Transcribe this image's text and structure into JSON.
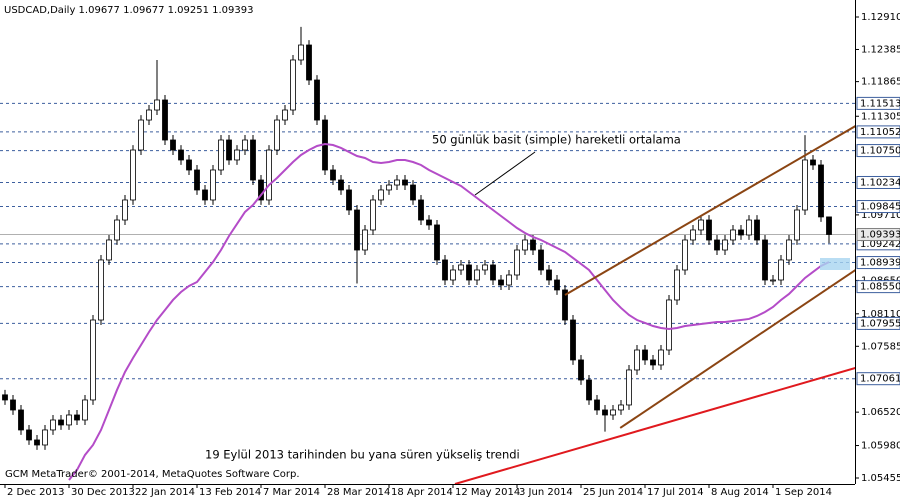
{
  "chart_data": {
    "type": "candlestick",
    "title": "USDCAD,Daily  1.09677 1.09677 1.09251 1.09393",
    "copyright": "GCM MetaTrader© 2001-2014, MetaQuotes Software Corp.",
    "annotations": [
      "50 günlük basit (simple) hareketli ortalama",
      "19 Eylül 2013 tarihinden bu yana süren yükseliş trendi"
    ],
    "ylim": [
      1.05358,
      1.13185
    ],
    "yticks": [
      {
        "value": 1.1291,
        "label": "1.12910"
      },
      1.12385,
      1.11865,
      1.11305,
      {
        "value": 1.0971,
        "label": "1.09710"
      },
      {
        "value": 1.0865,
        "label": "1.08650"
      },
      {
        "value": 1.0811,
        "label": "1.08110"
      },
      1.07585,
      {
        "value": 1.0652,
        "label": "1.06520"
      },
      {
        "value": 1.0598,
        "label": "1.05980"
      },
      1.05455
    ],
    "levels": [
      1.11513,
      1.11052,
      {
        "value": 1.1075,
        "label": "1.10750"
      },
      1.10234,
      1.09845,
      1.09242,
      1.08939,
      {
        "value": 1.0855,
        "label": "1.08550"
      },
      1.07955,
      1.07061
    ],
    "level_color": "#3d5f9e",
    "categories": [
      "2 Dec 2013",
      null,
      null,
      null,
      null,
      null,
      null,
      null,
      "30 Dec 2013",
      null,
      null,
      null,
      null,
      null,
      null,
      null,
      "22 Jan 2014",
      null,
      null,
      null,
      null,
      null,
      null,
      null,
      "13 Feb 2014",
      null,
      null,
      null,
      null,
      null,
      null,
      null,
      "7 Mar 2014",
      null,
      null,
      null,
      null,
      null,
      null,
      null,
      "28 Mar 2014",
      null,
      null,
      null,
      null,
      null,
      null,
      null,
      "18 Apr 2014",
      null,
      null,
      null,
      null,
      null,
      null,
      null,
      "12 May 2014",
      null,
      null,
      null,
      null,
      null,
      null,
      null,
      "3 Jun 2014",
      null,
      null,
      null,
      null,
      null,
      null,
      null,
      "25 Jun 2014",
      null,
      null,
      null,
      null,
      null,
      null,
      null,
      "17 Jul 2014",
      null,
      null,
      null,
      null,
      null,
      null,
      null,
      "8 Aug 2014",
      null,
      null,
      null,
      null,
      null,
      null,
      null,
      "1 Sep 2014",
      null,
      null,
      null,
      null,
      null,
      null,
      null
    ],
    "candles": [
      [
        1.068,
        1.0688,
        1.06637,
        1.06717
      ],
      [
        1.06717,
        1.06797,
        1.06475,
        1.06555
      ],
      [
        1.06555,
        1.06635,
        1.06152,
        1.06232
      ],
      [
        1.06232,
        1.06312,
        1.0599,
        1.0607
      ],
      [
        1.0607,
        1.0615,
        1.05909,
        1.05989
      ],
      [
        1.05989,
        1.06312,
        1.05909,
        1.06232
      ],
      [
        1.06232,
        1.06473,
        1.06152,
        1.06393
      ],
      [
        1.06393,
        1.06473,
        1.06233,
        1.06313
      ],
      [
        1.06313,
        1.06554,
        1.06233,
        1.06474
      ],
      [
        1.06474,
        1.06554,
        1.06313,
        1.06393
      ],
      [
        1.06393,
        1.06797,
        1.06313,
        1.06717
      ],
      [
        1.06717,
        1.0809,
        1.06637,
        1.0801
      ],
      [
        1.0801,
        1.09061,
        1.0793,
        1.08981
      ],
      [
        1.08981,
        1.09384,
        1.08901,
        1.09304
      ],
      [
        1.09304,
        1.09707,
        1.09224,
        1.09627
      ],
      [
        1.09627,
        1.10031,
        1.09547,
        1.09951
      ],
      [
        1.09951,
        1.10839,
        1.09871,
        1.10759
      ],
      [
        1.10759,
        1.11324,
        1.10679,
        1.11244
      ],
      [
        1.11244,
        1.11486,
        1.11164,
        1.11406
      ],
      [
        1.11406,
        1.12215,
        1.11326,
        1.11568
      ],
      [
        1.11568,
        1.11648,
        1.10841,
        1.10921
      ],
      [
        1.10921,
        1.11001,
        1.10679,
        1.10759
      ],
      [
        1.10759,
        1.10839,
        1.10518,
        1.10598
      ],
      [
        1.10598,
        1.10678,
        1.10356,
        1.10436
      ],
      [
        1.10436,
        1.10516,
        1.10033,
        1.10113
      ],
      [
        1.10113,
        1.10193,
        1.09871,
        1.09951
      ],
      [
        1.09951,
        1.10516,
        1.09871,
        1.10436
      ],
      [
        1.10436,
        1.11001,
        1.10356,
        1.10921
      ],
      [
        1.10921,
        1.11001,
        1.10518,
        1.10598
      ],
      [
        1.10598,
        1.10839,
        1.10518,
        1.10759
      ],
      [
        1.10759,
        1.11001,
        1.10679,
        1.10921
      ],
      [
        1.10921,
        1.11001,
        1.10194,
        1.10274
      ],
      [
        1.10274,
        1.10354,
        1.09871,
        1.09951
      ],
      [
        1.09951,
        1.10839,
        1.09871,
        1.10759
      ],
      [
        1.10759,
        1.11324,
        1.10679,
        1.11244
      ],
      [
        1.11244,
        1.11486,
        1.11164,
        1.11406
      ],
      [
        1.11406,
        1.12295,
        1.11326,
        1.12215
      ],
      [
        1.12215,
        1.1275,
        1.12135,
        1.12457
      ],
      [
        1.12457,
        1.12537,
        1.11811,
        1.11891
      ],
      [
        1.11891,
        1.11971,
        1.11164,
        1.11244
      ],
      [
        1.11244,
        1.11324,
        1.10356,
        1.10436
      ],
      [
        1.10436,
        1.10516,
        1.10194,
        1.10274
      ],
      [
        1.10274,
        1.10354,
        1.10033,
        1.10113
      ],
      [
        1.10113,
        1.10193,
        1.09709,
        1.09789
      ],
      [
        1.09789,
        1.09869,
        1.086,
        1.09142
      ],
      [
        1.09142,
        1.09546,
        1.09062,
        1.09466
      ],
      [
        1.09466,
        1.10031,
        1.09386,
        1.09951
      ],
      [
        1.09951,
        1.10193,
        1.09871,
        1.10113
      ],
      [
        1.10113,
        1.10273,
        1.10033,
        1.10193
      ],
      [
        1.10193,
        1.10354,
        1.10113,
        1.10274
      ],
      [
        1.10274,
        1.10354,
        1.10113,
        1.10193
      ],
      [
        1.10193,
        1.10273,
        1.09871,
        1.09951
      ],
      [
        1.09951,
        1.10031,
        1.09547,
        1.09627
      ],
      [
        1.09627,
        1.09707,
        1.09467,
        1.09547
      ],
      [
        1.09547,
        1.09627,
        1.08901,
        1.08981
      ],
      [
        1.08981,
        1.09061,
        1.08577,
        1.08657
      ],
      [
        1.08657,
        1.08899,
        1.08577,
        1.08819
      ],
      [
        1.08819,
        1.0898,
        1.08739,
        1.089
      ],
      [
        1.089,
        1.0898,
        1.08577,
        1.08657
      ],
      [
        1.08657,
        1.08899,
        1.08577,
        1.08819
      ],
      [
        1.08819,
        1.0898,
        1.08739,
        1.089
      ],
      [
        1.089,
        1.0898,
        1.08577,
        1.08657
      ],
      [
        1.08657,
        1.08737,
        1.08496,
        1.08576
      ],
      [
        1.08576,
        1.08818,
        1.08496,
        1.08738
      ],
      [
        1.08738,
        1.09222,
        1.08658,
        1.09142
      ],
      [
        1.09142,
        1.09384,
        1.09062,
        1.09304
      ],
      [
        1.09304,
        1.09384,
        1.09062,
        1.09142
      ],
      [
        1.09142,
        1.09222,
        1.08739,
        1.08819
      ],
      [
        1.08819,
        1.08899,
        1.08577,
        1.08657
      ],
      [
        1.08657,
        1.08737,
        1.08416,
        1.08496
      ],
      [
        1.08496,
        1.08576,
        1.0793,
        1.0801
      ],
      [
        1.0801,
        1.0809,
        1.07284,
        1.07364
      ],
      [
        1.07364,
        1.07444,
        1.0696,
        1.0704
      ],
      [
        1.0704,
        1.0712,
        1.06637,
        1.06717
      ],
      [
        1.06717,
        1.06797,
        1.06475,
        1.06555
      ],
      [
        1.06555,
        1.06635,
        1.06205,
        1.06474
      ],
      [
        1.06474,
        1.06635,
        1.06394,
        1.06555
      ],
      [
        1.06555,
        1.06716,
        1.06475,
        1.06636
      ],
      [
        1.06636,
        1.07282,
        1.06556,
        1.07202
      ],
      [
        1.07202,
        1.07605,
        1.07122,
        1.07525
      ],
      [
        1.07525,
        1.07605,
        1.07284,
        1.07364
      ],
      [
        1.07364,
        1.07444,
        1.07203,
        1.07283
      ],
      [
        1.07283,
        1.07605,
        1.07203,
        1.07525
      ],
      [
        1.07525,
        1.08414,
        1.07445,
        1.08334
      ],
      [
        1.08334,
        1.08899,
        1.08254,
        1.08819
      ],
      [
        1.08819,
        1.09384,
        1.08739,
        1.09304
      ],
      [
        1.09304,
        1.09546,
        1.09224,
        1.09466
      ],
      [
        1.09466,
        1.09707,
        1.09386,
        1.09627
      ],
      [
        1.09627,
        1.09707,
        1.09224,
        1.09304
      ],
      [
        1.09304,
        1.09384,
        1.09062,
        1.09142
      ],
      [
        1.09142,
        1.09384,
        1.09062,
        1.09304
      ],
      [
        1.09304,
        1.09546,
        1.09224,
        1.09466
      ],
      [
        1.09466,
        1.09546,
        1.09305,
        1.09385
      ],
      [
        1.09385,
        1.09707,
        1.09305,
        1.09627
      ],
      [
        1.09627,
        1.09707,
        1.09224,
        1.09304
      ],
      [
        1.09304,
        1.09384,
        1.08577,
        1.08657
      ],
      [
        1.08657,
        1.08737,
        1.08577,
        1.08657
      ],
      [
        1.08657,
        1.09061,
        1.08577,
        1.08981
      ],
      [
        1.08981,
        1.09384,
        1.08901,
        1.09304
      ],
      [
        1.09304,
        1.09869,
        1.09224,
        1.09789
      ],
      [
        1.09789,
        1.11,
        1.09709,
        1.10598
      ],
      [
        1.10598,
        1.10678,
        1.10437,
        1.10517
      ],
      [
        1.10517,
        1.10597,
        1.09597,
        1.09677
      ],
      [
        1.09677,
        1.09677,
        1.09251,
        1.09393
      ]
    ],
    "ma": {
      "color": "#b44cc8",
      "values": [
        null,
        null,
        null,
        null,
        null,
        null,
        null,
        null,
        1.05423,
        1.05585,
        1.05828,
        1.05989,
        1.06232,
        1.06555,
        1.06879,
        1.0717,
        1.07396,
        1.07606,
        1.07816,
        1.0801,
        1.08172,
        1.08334,
        1.08463,
        1.0856,
        1.08625,
        1.08787,
        1.08948,
        1.09142,
        1.09369,
        1.09563,
        1.09757,
        1.0987,
        1.10032,
        1.10193,
        1.10307,
        1.10436,
        1.10565,
        1.10679,
        1.10759,
        1.10824,
        1.10856,
        1.1084,
        1.10792,
        1.10727,
        1.10662,
        1.1063,
        1.10565,
        1.10549,
        1.10565,
        1.10598,
        1.10598,
        1.10565,
        1.10517,
        1.10436,
        1.10371,
        1.10307,
        1.10242,
        1.10177,
        1.1008,
        1.09983,
        1.09886,
        1.09789,
        1.09692,
        1.09595,
        1.09498,
        1.09417,
        1.09353,
        1.09304,
        1.09239,
        1.09175,
        1.0911,
        1.09013,
        1.08916,
        1.08819,
        1.08657,
        1.08496,
        1.08334,
        1.08205,
        1.08091,
        1.0801,
        1.07962,
        1.07913,
        1.07881,
        1.07865,
        1.07881,
        1.07913,
        1.0793,
        1.07946,
        1.07962,
        1.07978,
        1.07978,
        1.07994,
        1.0801,
        1.08027,
        1.08075,
        1.0814,
        1.08221,
        1.08334,
        1.08431,
        1.0856,
        1.0869,
        1.08787,
        1.08884,
        1.08948
      ]
    },
    "trendlines": [
      {
        "color": "#8b4513",
        "x": [
          70,
          111.9
        ],
        "values": [
          1.08415,
          1.11568
        ]
      },
      {
        "color": "#8b4513",
        "x": [
          76.9,
          111.9
        ],
        "values": [
          1.06264,
          1.09304
        ]
      },
      {
        "color": "#e0191e",
        "x": [
          56.25,
          111.9
        ],
        "values": [
          1.05358,
          1.07445
        ]
      }
    ]
  }
}
